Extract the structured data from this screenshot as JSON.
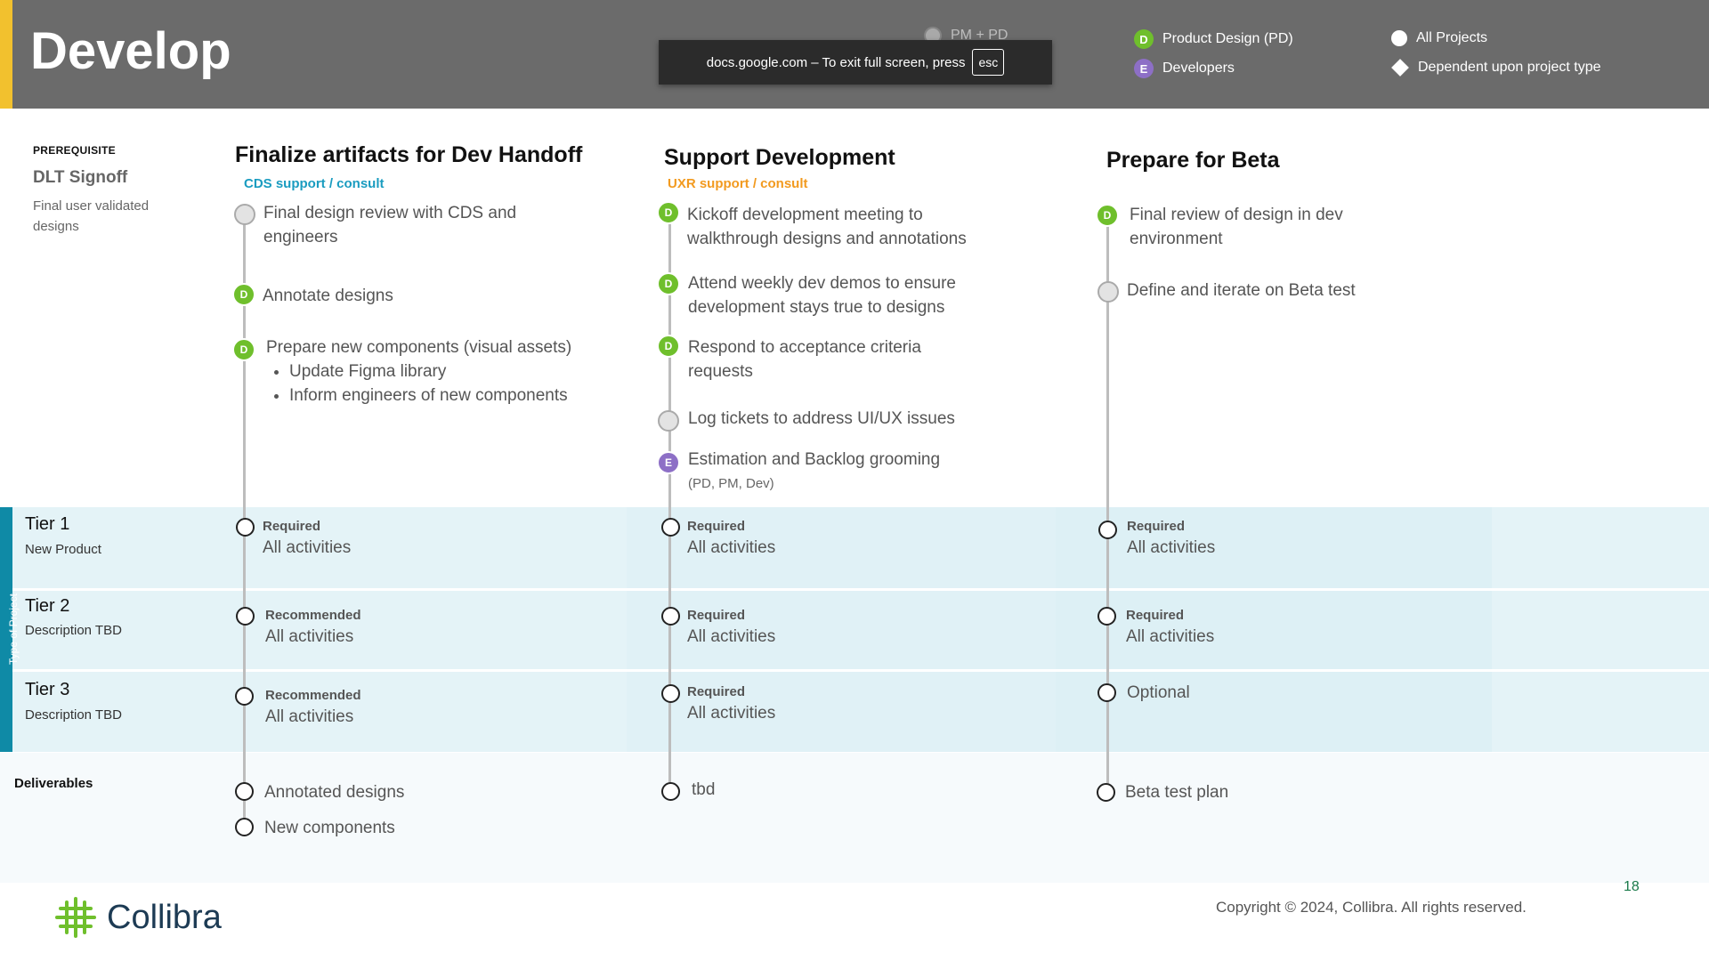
{
  "header": {
    "title": "Develop",
    "legend": {
      "pm_pd": "PM + PD",
      "product_design": "Product Design (PD)",
      "developers": "Developers",
      "all_projects": "All Projects",
      "dependent": "Dependent upon project type",
      "d_badge": "D",
      "e_badge": "E"
    },
    "fullscreen_banner": {
      "text": "docs.google.com – To exit full screen, press",
      "key": "esc"
    }
  },
  "prerequisite": {
    "label": "PREREQUISITE",
    "title": "DLT Signoff",
    "description": "Final user validated designs"
  },
  "columns": [
    {
      "title": "Finalize artifacts for Dev Handoff",
      "subtitle": "CDS support / consult",
      "activities": [
        {
          "text": "Final design review with CDS and engineers",
          "icon": "pm-pd-icon"
        },
        {
          "text": "Annotate designs",
          "icon": "D"
        },
        {
          "text": "Prepare new components (visual assets)",
          "icon": "D",
          "bullets": [
            "Update Figma library",
            "Inform engineers of new components"
          ]
        }
      ],
      "tiers": [
        {
          "label": "Required",
          "value": "All activities"
        },
        {
          "label": "Recommended",
          "value": "All activities"
        },
        {
          "label": "Recommended",
          "value": "All activities"
        }
      ],
      "deliverables": [
        "Annotated designs",
        "New components"
      ]
    },
    {
      "title": "Support Development",
      "subtitle": "UXR support / consult",
      "activities": [
        {
          "text": "Kickoff development meeting to walkthrough designs and annotations",
          "icon": "D"
        },
        {
          "text": "Attend weekly dev demos to ensure development stays true to designs",
          "icon": "D"
        },
        {
          "text": "Respond to acceptance criteria requests",
          "icon": "D"
        },
        {
          "text": "Log tickets to address UI/UX issues",
          "icon": "pm-pd-icon"
        },
        {
          "text": "Estimation and Backlog grooming",
          "icon": "E",
          "note": "(PD, PM, Dev)"
        }
      ],
      "tiers": [
        {
          "label": "Required",
          "value": "All activities"
        },
        {
          "label": "Required",
          "value": "All activities"
        },
        {
          "label": "Required",
          "value": "All activities"
        }
      ],
      "deliverables": [
        "tbd"
      ]
    },
    {
      "title": "Prepare for Beta",
      "subtitle": "",
      "activities": [
        {
          "text": "Final review of design in dev environment",
          "icon": "D"
        },
        {
          "text": "Define and iterate on Beta test",
          "icon": "pm-pd-icon"
        }
      ],
      "tiers": [
        {
          "label": "Required",
          "value": "All activities"
        },
        {
          "label": "Required",
          "value": "All activities"
        },
        {
          "label": "",
          "value": "Optional"
        }
      ],
      "deliverables": [
        "Beta test plan"
      ]
    }
  ],
  "tiers": [
    {
      "name": "Tier 1",
      "description": "New Product"
    },
    {
      "name": "Tier 2",
      "description": "Description TBD"
    },
    {
      "name": "Tier 3",
      "description": "Description TBD"
    }
  ],
  "side_label": "Type of Project",
  "deliverables_label": "Deliverables",
  "footer": {
    "brand": "Collibra",
    "copyright": "Copyright © 2024, Collibra. All rights reserved.",
    "page_number": "18"
  },
  "colors": {
    "header_bg": "#6b6b6b",
    "accent_yellow": "#f2c12e",
    "designer_green": "#6fbf2c",
    "developer_purple": "#8d6fc6",
    "tier_band": "#e4f3f7",
    "side_teal": "#0f8aa6",
    "cds_blue": "#1a9cc0",
    "uxr_orange": "#f29a1f"
  }
}
